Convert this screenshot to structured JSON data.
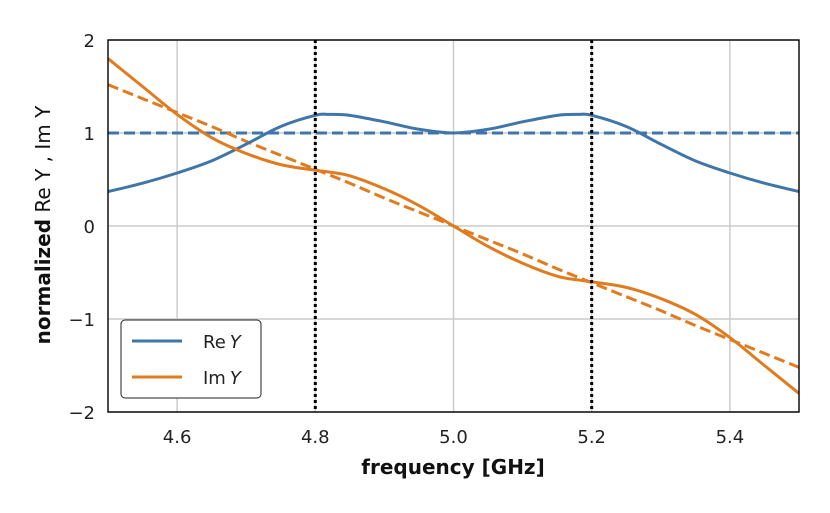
{
  "chart_data": {
    "type": "line",
    "xlabel_bold": "frequency",
    "xlabel_rest": " [GHz]",
    "ylabel_bold": "normalized",
    "ylabel_rest": " Re Y , Im Y",
    "xlim": [
      4.5,
      5.5
    ],
    "ylim": [
      -2,
      2
    ],
    "xticks": [
      4.6,
      4.8,
      5.0,
      5.2,
      5.4
    ],
    "xtick_labels": [
      "4.6",
      "4.8",
      "5.0",
      "5.2",
      "5.4"
    ],
    "yticks": [
      -2,
      -1,
      0,
      1,
      2
    ],
    "ytick_labels": [
      "−2",
      "−1",
      "0",
      "1",
      "2"
    ],
    "grid": true,
    "legend_position": "bottom-left",
    "colors": {
      "blue": "#3f75a8",
      "orange": "#e07b1e",
      "grid": "#cccccc",
      "vline": "#000000"
    },
    "x": [
      4.5,
      4.55,
      4.6,
      4.65,
      4.7,
      4.75,
      4.8,
      4.82,
      4.85,
      4.9,
      4.95,
      5.0,
      5.05,
      5.1,
      5.15,
      5.18,
      5.2,
      5.25,
      5.3,
      5.35,
      5.4,
      5.45,
      5.5
    ],
    "series": [
      {
        "name": "Re Y",
        "style": "solid",
        "color": "#3f75a8",
        "legend_main": "Re",
        "legend_var": "Y",
        "values": [
          0.37,
          0.46,
          0.57,
          0.7,
          0.88,
          1.07,
          1.19,
          1.2,
          1.19,
          1.12,
          1.04,
          1.0,
          1.04,
          1.12,
          1.19,
          1.2,
          1.19,
          1.07,
          0.88,
          0.7,
          0.57,
          0.46,
          0.37
        ]
      },
      {
        "name": "Im Y",
        "style": "solid",
        "color": "#e07b1e",
        "legend_main": "Im",
        "legend_var": "Y",
        "values": [
          1.8,
          1.5,
          1.2,
          0.95,
          0.78,
          0.66,
          0.6,
          0.58,
          0.54,
          0.4,
          0.22,
          0.0,
          -0.22,
          -0.4,
          -0.54,
          -0.58,
          -0.6,
          -0.66,
          -0.78,
          -0.95,
          -1.2,
          -1.5,
          -1.8
        ]
      },
      {
        "name": "Re Y reference",
        "style": "dashed",
        "color": "#3f75a8",
        "values": [
          1.0,
          1.0,
          1.0,
          1.0,
          1.0,
          1.0,
          1.0,
          1.0,
          1.0,
          1.0,
          1.0,
          1.0,
          1.0,
          1.0,
          1.0,
          1.0,
          1.0,
          1.0,
          1.0,
          1.0,
          1.0,
          1.0,
          1.0
        ]
      },
      {
        "name": "Im Y reference",
        "style": "dashed",
        "color": "#e07b1e",
        "values": [
          1.52,
          1.37,
          1.22,
          1.07,
          0.91,
          0.76,
          0.61,
          0.55,
          0.46,
          0.3,
          0.15,
          0.0,
          -0.15,
          -0.3,
          -0.46,
          -0.55,
          -0.61,
          -0.76,
          -0.91,
          -1.07,
          -1.22,
          -1.37,
          -1.52
        ]
      }
    ],
    "vlines": [
      4.8,
      5.2
    ]
  }
}
